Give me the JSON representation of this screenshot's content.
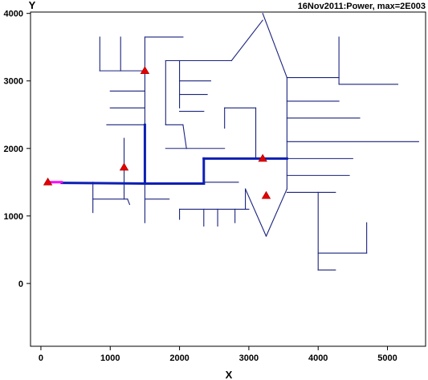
{
  "chart_data": {
    "type": "line",
    "title": "16Nov2011:Power, max=2E003",
    "xlabel": "X",
    "ylabel": "Y",
    "xlim": [
      -150,
      5550
    ],
    "ylim": [
      -930,
      4020
    ],
    "x_ticks": [
      0,
      1000,
      2000,
      3000,
      4000,
      5000
    ],
    "y_ticks": [
      0,
      1000,
      2000,
      3000,
      4000
    ],
    "grid": false,
    "colors": {
      "network": "#1a237e",
      "flow": "#0d1fb3",
      "feed": "#ff00ff",
      "marker": "#e60000",
      "axis": "#000000"
    },
    "series": [
      {
        "role": "network",
        "segments": [
          [
            [
              1500,
              3650
            ],
            [
              1500,
              1480
            ]
          ],
          [
            [
              1500,
              3650
            ],
            [
              2050,
              3650
            ]
          ],
          [
            [
              850,
              3650
            ],
            [
              850,
              3150
            ]
          ],
          [
            [
              850,
              3150
            ],
            [
              1500,
              3150
            ]
          ],
          [
            [
              1150,
              3650
            ],
            [
              1150,
              3150
            ]
          ],
          [
            [
              1000,
              2850
            ],
            [
              1500,
              2850
            ]
          ],
          [
            [
              1000,
              2600
            ],
            [
              1500,
              2600
            ]
          ],
          [
            [
              950,
              2350
            ],
            [
              1500,
              2350
            ]
          ],
          [
            [
              1200,
              2150
            ],
            [
              1200,
              1250
            ]
          ],
          [
            [
              750,
              1500
            ],
            [
              750,
              1050
            ]
          ],
          [
            [
              750,
              1250
            ],
            [
              1250,
              1250
            ]
          ],
          [
            [
              1250,
              1250
            ],
            [
              1280,
              1170
            ]
          ],
          [
            [
              1500,
              1250
            ],
            [
              1850,
              1250
            ]
          ],
          [
            [
              1500,
              1480
            ],
            [
              1500,
              900
            ]
          ],
          [
            [
              1800,
              2350
            ],
            [
              1800,
              3300
            ]
          ],
          [
            [
              1800,
              3300
            ],
            [
              2750,
              3300
            ]
          ],
          [
            [
              1800,
              2350
            ],
            [
              2050,
              2350
            ]
          ],
          [
            [
              2000,
              3300
            ],
            [
              2000,
              2600
            ]
          ],
          [
            [
              2000,
              3000
            ],
            [
              2450,
              3000
            ]
          ],
          [
            [
              2000,
              2800
            ],
            [
              2400,
              2800
            ]
          ],
          [
            [
              2000,
              2550
            ],
            [
              2350,
              2550
            ]
          ],
          [
            [
              2050,
              2350
            ],
            [
              2100,
              2000
            ]
          ],
          [
            [
              1800,
              2000
            ],
            [
              2650,
              2000
            ]
          ],
          [
            [
              2650,
              2600
            ],
            [
              2650,
              2300
            ]
          ],
          [
            [
              2650,
              2600
            ],
            [
              3100,
              2600
            ]
          ],
          [
            [
              3100,
              2600
            ],
            [
              3100,
              1850
            ]
          ],
          [
            [
              2750,
              3300
            ],
            [
              3200,
              3900
            ]
          ],
          [
            [
              3200,
              4000
            ],
            [
              3550,
              3050
            ]
          ],
          [
            [
              3550,
              3050
            ],
            [
              3550,
              1400
            ]
          ],
          [
            [
              3550,
              1400
            ],
            [
              3250,
              700
            ]
          ],
          [
            [
              3250,
              700
            ],
            [
              2950,
              1400
            ]
          ],
          [
            [
              3550,
              3050
            ],
            [
              4300,
              3050
            ]
          ],
          [
            [
              4300,
              3650
            ],
            [
              4300,
              2950
            ]
          ],
          [
            [
              4300,
              2950
            ],
            [
              5150,
              2950
            ]
          ],
          [
            [
              3550,
              2700
            ],
            [
              4300,
              2700
            ]
          ],
          [
            [
              3550,
              2450
            ],
            [
              4600,
              2450
            ]
          ],
          [
            [
              3550,
              2100
            ],
            [
              5450,
              2100
            ]
          ],
          [
            [
              3550,
              1850
            ],
            [
              4500,
              1850
            ]
          ],
          [
            [
              3550,
              1600
            ],
            [
              4450,
              1600
            ]
          ],
          [
            [
              3550,
              1350
            ],
            [
              4250,
              1350
            ]
          ],
          [
            [
              4000,
              1350
            ],
            [
              4000,
              200
            ]
          ],
          [
            [
              4000,
              200
            ],
            [
              4250,
              200
            ]
          ],
          [
            [
              4000,
              450
            ],
            [
              4700,
              450
            ]
          ],
          [
            [
              4700,
              450
            ],
            [
              4700,
              900
            ]
          ],
          [
            [
              2000,
              1100
            ],
            [
              3000,
              1100
            ]
          ],
          [
            [
              2000,
              1100
            ],
            [
              2000,
              950
            ]
          ],
          [
            [
              2350,
              1100
            ],
            [
              2350,
              850
            ]
          ],
          [
            [
              2550,
              1100
            ],
            [
              2550,
              850
            ]
          ],
          [
            [
              2800,
              1100
            ],
            [
              2800,
              900
            ]
          ],
          [
            [
              2950,
              1400
            ],
            [
              2950,
              1100
            ]
          ],
          [
            [
              2350,
              1500
            ],
            [
              2850,
              1500
            ]
          ]
        ]
      },
      {
        "role": "flow",
        "segments": [
          [
            [
              300,
              1490
            ],
            [
              1500,
              1480
            ]
          ],
          [
            [
              1500,
              1480
            ],
            [
              2350,
              1480
            ]
          ],
          [
            [
              2350,
              1480
            ],
            [
              2350,
              1850
            ]
          ],
          [
            [
              2350,
              1850
            ],
            [
              3550,
              1850
            ]
          ],
          [
            [
              1500,
              1480
            ],
            [
              1500,
              2350
            ]
          ]
        ]
      },
      {
        "role": "feed",
        "segments": [
          [
            [
              100,
              1500
            ],
            [
              300,
              1500
            ]
          ]
        ]
      },
      {
        "role": "markers",
        "points": [
          {
            "x": 100,
            "y": 1500
          },
          {
            "x": 1500,
            "y": 3150
          },
          {
            "x": 1200,
            "y": 1720
          },
          {
            "x": 3200,
            "y": 1850
          },
          {
            "x": 3250,
            "y": 1300
          }
        ]
      }
    ]
  }
}
